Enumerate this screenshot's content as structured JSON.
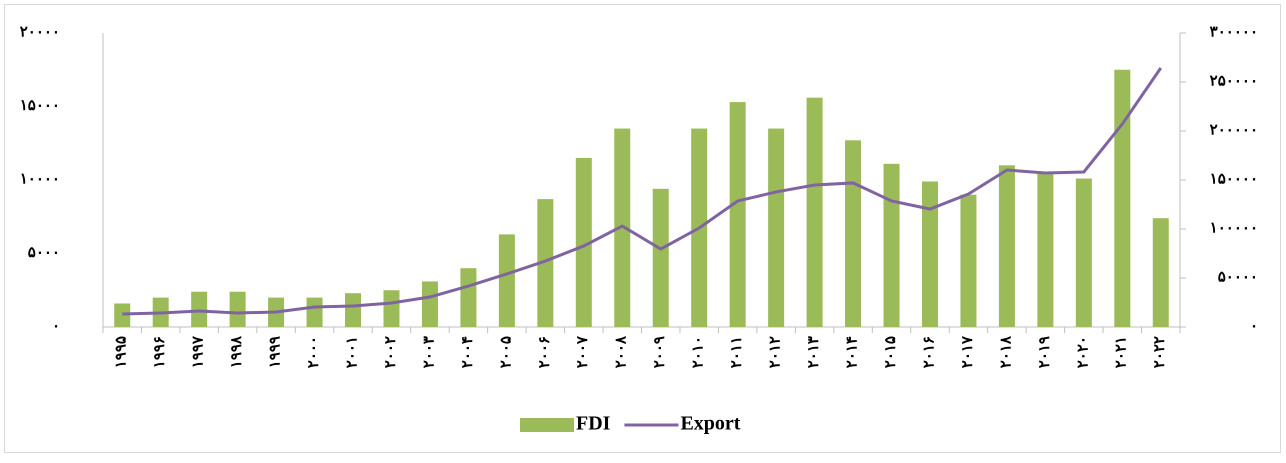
{
  "chart_data": {
    "type": "bar",
    "categories": [
      "۱۹۹۵",
      "۱۹۹۶",
      "۱۹۹۷",
      "۱۹۹۸",
      "۱۹۹۹",
      "۲۰۰۰",
      "۲۰۰۱",
      "۲۰۰۲",
      "۲۰۰۳",
      "۲۰۰۴",
      "۲۰۰۵",
      "۲۰۰۶",
      "۲۰۰۷",
      "۲۰۰۸",
      "۲۰۰۹",
      "۲۰۱۰",
      "۲۰۱۱",
      "۲۰۱۲",
      "۲۰۱۳",
      "۲۰۱۴",
      "۲۰۱۵",
      "۲۰۱۶",
      "۲۰۱۷",
      "۲۰۱۸",
      "۲۰۱۹",
      "۲۰۲۰",
      "۲۰۲۱",
      "۲۰۲۲"
    ],
    "series": [
      {
        "name": "FDI",
        "type": "bar",
        "color": "#9bbb59",
        "values": [
          1600,
          2000,
          2400,
          2400,
          2000,
          2000,
          2300,
          2500,
          3100,
          4000,
          6300,
          8700,
          11500,
          13500,
          9400,
          13500,
          15300,
          13500,
          15600,
          12700,
          11100,
          9900,
          9000,
          11000,
          10500,
          10100,
          17500,
          7400
        ]
      },
      {
        "name": "Export",
        "type": "line",
        "axis": "y2",
        "color": "#8064a2",
        "values": [
          13300,
          14300,
          16300,
          14300,
          15300,
          20400,
          21400,
          24500,
          30600,
          41800,
          54100,
          67300,
          82700,
          103000,
          79600,
          101000,
          128600,
          137800,
          144900,
          147000,
          128600,
          120400,
          135700,
          160200,
          157100,
          158200,
          207100,
          264300
        ]
      }
    ],
    "ylim": [
      0,
      20000
    ],
    "yticks": [
      {
        "value": 0,
        "label": "۰"
      },
      {
        "value": 5000,
        "label": "۵۰۰۰"
      },
      {
        "value": 10000,
        "label": "۱۰۰۰۰"
      },
      {
        "value": 15000,
        "label": "۱۵۰۰۰"
      },
      {
        "value": 20000,
        "label": "۲۰۰۰۰"
      }
    ],
    "y2lim": [
      0,
      300000
    ],
    "y2ticks": [
      {
        "value": 0,
        "label": "۰"
      },
      {
        "value": 50000,
        "label": "۵۰۰۰۰"
      },
      {
        "value": 100000,
        "label": "۱۰۰۰۰۰"
      },
      {
        "value": 150000,
        "label": "۱۵۰۰۰۰"
      },
      {
        "value": 200000,
        "label": "۲۰۰۰۰۰"
      },
      {
        "value": 250000,
        "label": "۲۵۰۰۰۰"
      },
      {
        "value": 300000,
        "label": "۳۰۰۰۰۰"
      }
    ],
    "legend": "bottom"
  }
}
